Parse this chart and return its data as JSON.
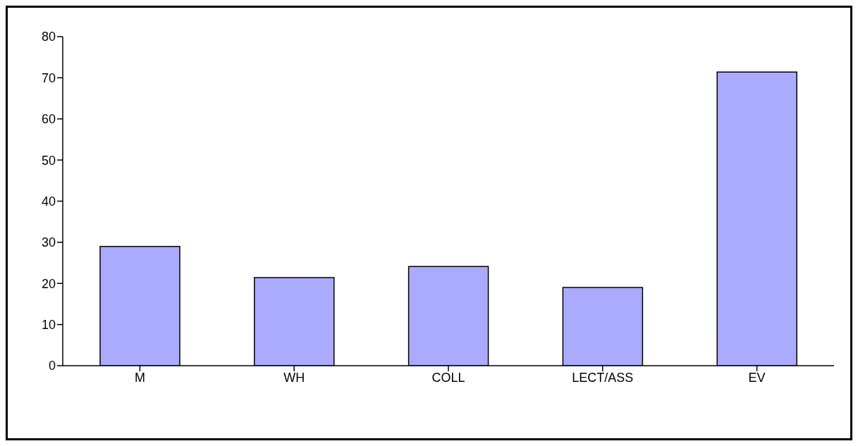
{
  "chart_data": {
    "type": "bar",
    "categories": [
      "M",
      "WH",
      "COLL",
      "LECT/ASS",
      "EV"
    ],
    "values": [
      29,
      21.4,
      24.1,
      19,
      71.4
    ],
    "color": "#aaaaff",
    "ylim": [
      0,
      80
    ],
    "yticks": [
      0,
      10,
      20,
      30,
      40,
      50,
      60,
      70,
      80
    ],
    "grid": false,
    "legend": false
  }
}
